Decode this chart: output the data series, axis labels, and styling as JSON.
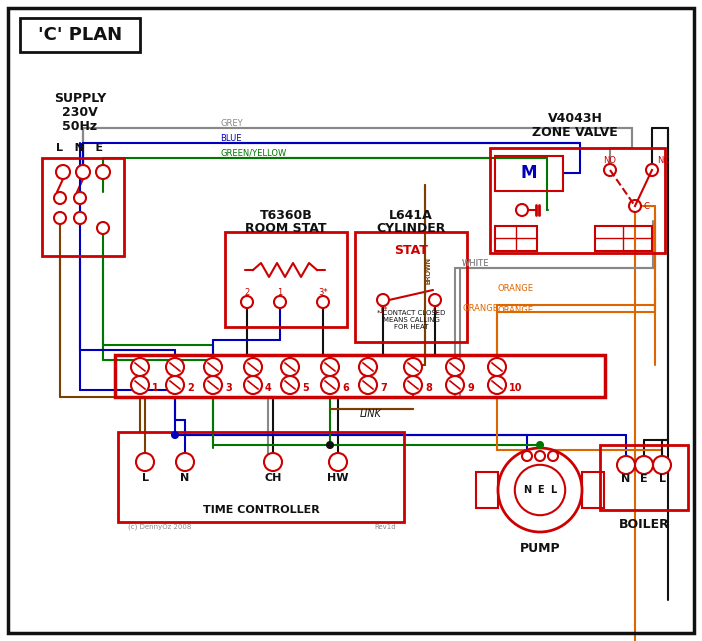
{
  "bg": "#ffffff",
  "RED": "#cc0000",
  "BLUE": "#0000bb",
  "GREEN": "#007700",
  "GREY": "#888888",
  "BROWN": "#7B3F00",
  "ORANGE": "#DD6600",
  "BLACK": "#111111",
  "WHITEW": "#888888",
  "title": "'C' PLAN",
  "zone_valve_title1": "V4043H",
  "zone_valve_title2": "ZONE VALVE",
  "room_stat1": "T6360B",
  "room_stat2": "ROOM STAT",
  "cyl_stat1": "L641A",
  "cyl_stat2": "CYLINDER",
  "cyl_stat3": "STAT",
  "supply1": "SUPPLY",
  "supply2": "230V",
  "supply3": "50Hz",
  "lne": "L   N   E",
  "time_ctrl": "TIME CONTROLLER",
  "pump_lbl": "PUMP",
  "boiler_lbl": "BOILER",
  "link_lbl": "LINK",
  "contact_note": "* CONTACT CLOSED\nMEANS CALLING\nFOR HEAT",
  "copyright": "(c) DennyOz 2008",
  "rev": "Rev1d",
  "wire_grey": "GREY",
  "wire_blue": "BLUE",
  "wire_gy": "GREEN/YELLOW",
  "wire_brown": "BROWN",
  "wire_white": "WHITE",
  "wire_orange": "ORANGE"
}
